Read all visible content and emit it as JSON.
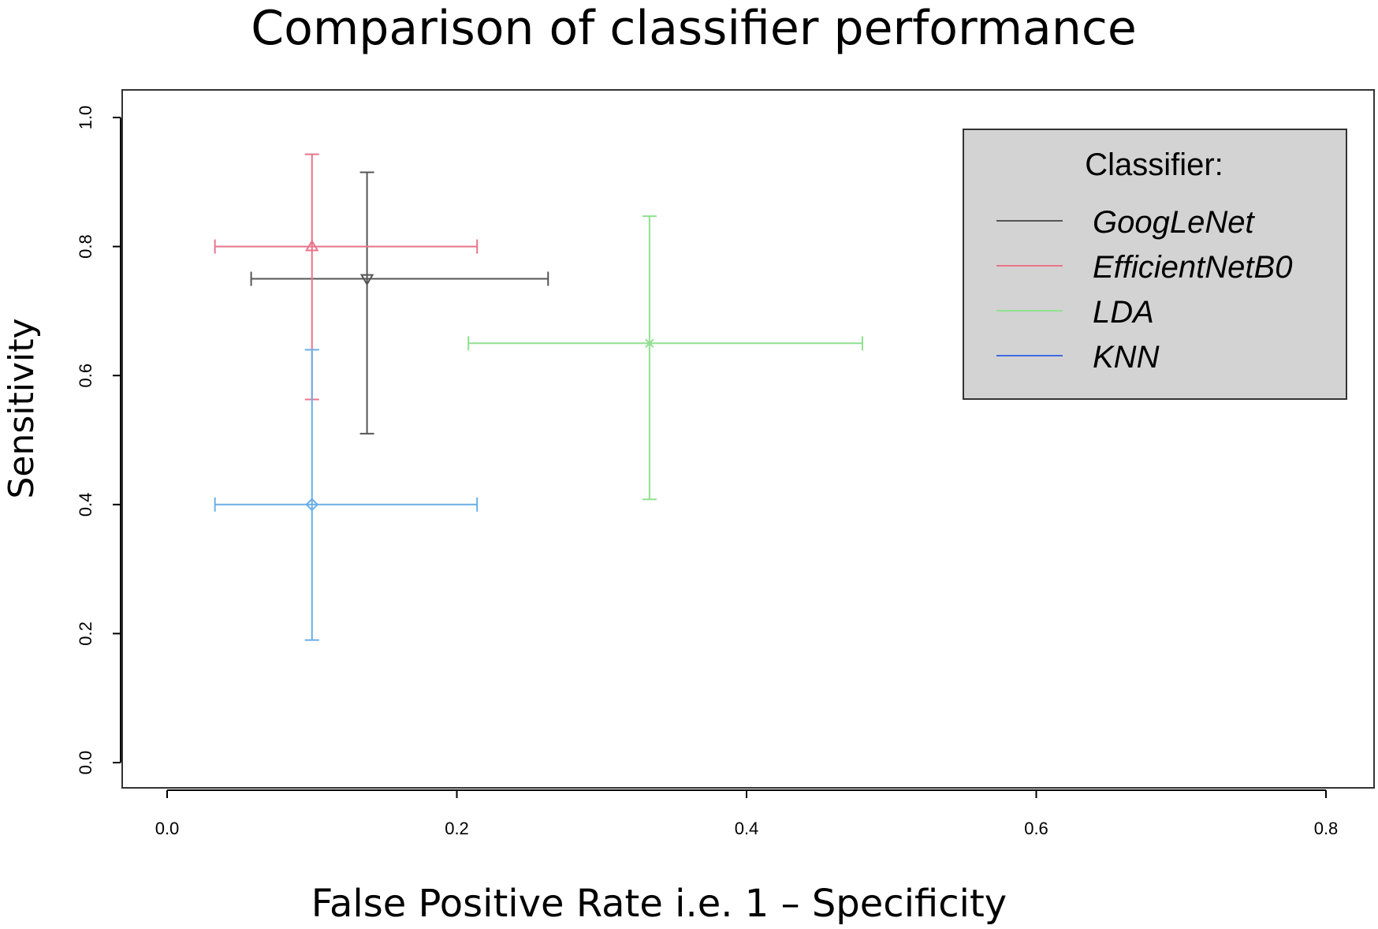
{
  "chart_data": {
    "type": "scatter",
    "title": "Comparison of classifier performance",
    "xlabel": "False Positive Rate i.e. 1 – Specificity",
    "ylabel": "Sensitivity",
    "xlim": [
      0,
      0.8
    ],
    "ylim": [
      0,
      1.0
    ],
    "x_ticks": [
      "0.0",
      "0.2",
      "0.4",
      "0.6",
      "0.8"
    ],
    "y_ticks": [
      "0.0",
      "0.2",
      "0.4",
      "0.6",
      "0.8",
      "1.0"
    ],
    "grid": false,
    "legend": {
      "title": "Classifier:",
      "position": "top-right"
    },
    "series": [
      {
        "name": "GoogLeNet",
        "color": "#555555",
        "marker": "triangle-down",
        "x": 0.138,
        "y": 0.75,
        "x_err": [
          0.058,
          0.263
        ],
        "y_err": [
          0.51,
          0.915
        ]
      },
      {
        "name": "EfficientNetB0",
        "color": "#e8758b",
        "marker": "triangle-up",
        "x": 0.1,
        "y": 0.8,
        "x_err": [
          0.033,
          0.214
        ],
        "y_err": [
          0.563,
          0.943
        ]
      },
      {
        "name": "LDA",
        "color": "#90e090",
        "marker": "x",
        "x": 0.333,
        "y": 0.65,
        "x_err": [
          0.208,
          0.48
        ],
        "y_err": [
          0.408,
          0.847
        ]
      },
      {
        "name": "KNN",
        "color": "#6aaee6",
        "legend_color": "#4169e1",
        "marker": "diamond",
        "x": 0.1,
        "y": 0.4,
        "x_err": [
          0.033,
          0.214
        ],
        "y_err": [
          0.19,
          0.64
        ]
      }
    ]
  }
}
